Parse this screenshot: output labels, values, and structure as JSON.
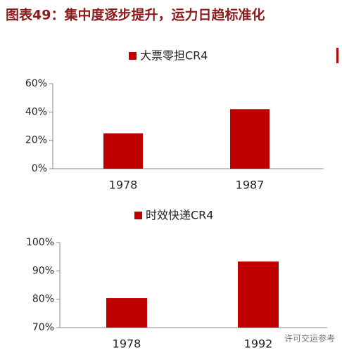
{
  "title": "图表49：集中度逐步提升，运力日趋标准化",
  "watermark": "许可交运参考",
  "chart_data": [
    {
      "type": "bar",
      "categories": [
        "1978",
        "1987"
      ],
      "series": [
        {
          "name": "大票零担CR4",
          "color": "#c00000",
          "values": [
            25,
            42
          ]
        }
      ],
      "ylim": [
        0,
        60
      ],
      "yticks": [
        {
          "value": 0,
          "label": "0%"
        },
        {
          "value": 20,
          "label": "20%"
        },
        {
          "value": 40,
          "label": "40%"
        },
        {
          "value": 60,
          "label": "60%"
        }
      ]
    },
    {
      "type": "bar",
      "categories": [
        "1978",
        "1992"
      ],
      "series": [
        {
          "name": "时效快递CR4",
          "color": "#c00000",
          "values": [
            80.4,
            93.3
          ]
        }
      ],
      "ylim": [
        70,
        100
      ],
      "yticks": [
        {
          "value": 70,
          "label": "70%"
        },
        {
          "value": 80,
          "label": "80%"
        },
        {
          "value": 90,
          "label": "90%"
        },
        {
          "value": 100,
          "label": "100%"
        }
      ]
    }
  ]
}
